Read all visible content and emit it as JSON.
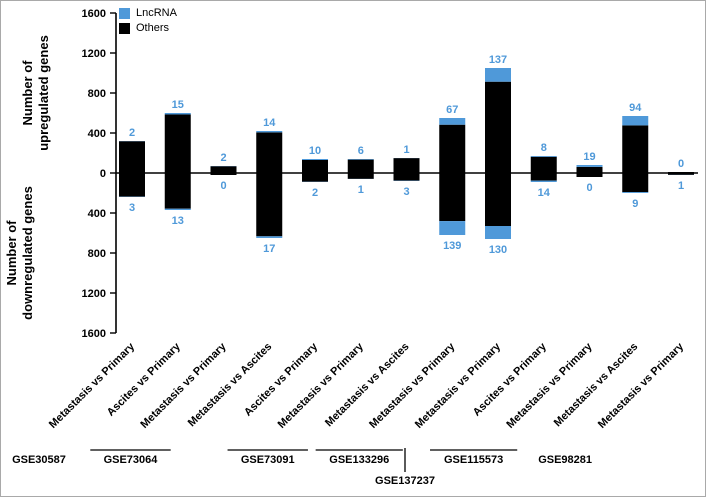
{
  "chart_data": {
    "type": "bar",
    "variant": "diverging_stacked",
    "title": "",
    "legend": [
      {
        "name": "LncRNA",
        "color": "#4f99d9"
      },
      {
        "name": "Others",
        "color": "#000000"
      }
    ],
    "y_axis": {
      "label_up": [
        "Number of",
        "upregulated genes"
      ],
      "label_down": [
        "Number of",
        "downregulated genes"
      ],
      "ticks": [
        0,
        400,
        800,
        1200,
        1600
      ],
      "max": 1600
    },
    "annotation_color": "#4f99d9",
    "bars": [
      {
        "comparison": "Metastasis vs Primary",
        "up": {
          "lncrna": 2,
          "others": 318
        },
        "down": {
          "lncrna": 3,
          "others": 237
        }
      },
      {
        "comparison": "Ascites vs Primary",
        "up": {
          "lncrna": 15,
          "others": 585
        },
        "down": {
          "lncrna": 13,
          "others": 357
        }
      },
      {
        "comparison": "Metastasis vs Primary",
        "up": {
          "lncrna": 2,
          "others": 68
        },
        "down": {
          "lncrna": 0,
          "others": 20
        }
      },
      {
        "comparison": "Metastasis vs Ascites",
        "up": {
          "lncrna": 14,
          "others": 406
        },
        "down": {
          "lncrna": 17,
          "others": 633
        }
      },
      {
        "comparison": "Ascites vs Primary",
        "up": {
          "lncrna": 10,
          "others": 130
        },
        "down": {
          "lncrna": 2,
          "others": 88
        }
      },
      {
        "comparison": "Metastasis vs Primary",
        "up": {
          "lncrna": 6,
          "others": 134
        },
        "down": {
          "lncrna": 1,
          "others": 59
        }
      },
      {
        "comparison": "Metastasis vs Ascites",
        "up": {
          "lncrna": 1,
          "others": 149
        },
        "down": {
          "lncrna": 3,
          "others": 77
        }
      },
      {
        "comparison": "Metastasis vs Primary",
        "up": {
          "lncrna": 67,
          "others": 483
        },
        "down": {
          "lncrna": 139,
          "others": 481
        }
      },
      {
        "comparison": "Metastasis vs Primary",
        "up": {
          "lncrna": 137,
          "others": 913
        },
        "down": {
          "lncrna": 130,
          "others": 530
        }
      },
      {
        "comparison": "Ascites vs Primary",
        "up": {
          "lncrna": 8,
          "others": 162
        },
        "down": {
          "lncrna": 14,
          "others": 76
        }
      },
      {
        "comparison": "Metastasis vs Primary",
        "up": {
          "lncrna": 19,
          "others": 61
        },
        "down": {
          "lncrna": 0,
          "others": 40
        }
      },
      {
        "comparison": "Metastasis vs Ascites",
        "up": {
          "lncrna": 94,
          "others": 476
        },
        "down": {
          "lncrna": 9,
          "others": 191
        }
      },
      {
        "comparison": "Metastasis vs Primary",
        "up": {
          "lncrna": 0,
          "others": 10
        },
        "down": {
          "lncrna": 1,
          "others": 19
        }
      }
    ],
    "groups": [
      {
        "label": "GSE30587",
        "bars": [
          0
        ],
        "overline": false,
        "row": 0,
        "connector": false
      },
      {
        "label": "GSE73064",
        "bars": [
          1,
          2,
          3
        ],
        "overline": true,
        "row": 0,
        "connector": false
      },
      {
        "label": "GSE73091",
        "bars": [
          4,
          5,
          6
        ],
        "overline": true,
        "row": 0,
        "connector": false
      },
      {
        "label": "GSE133296",
        "bars": [
          7
        ],
        "overline": true,
        "row": 0,
        "connector": false
      },
      {
        "label": "GSE137237",
        "bars": [
          8
        ],
        "overline": false,
        "row": 1,
        "connector": true
      },
      {
        "label": "GSE115573",
        "bars": [
          9,
          10
        ],
        "overline": true,
        "row": 0,
        "connector": false
      },
      {
        "label": "GSE98281",
        "bars": [
          11,
          12
        ],
        "overline": false,
        "row": 0,
        "connector": false
      }
    ]
  }
}
